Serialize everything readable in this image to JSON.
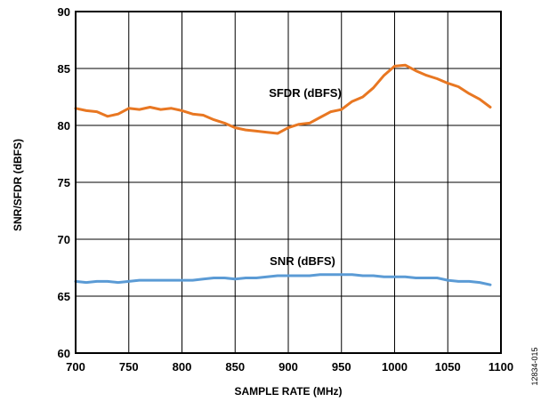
{
  "chart_data": {
    "type": "line",
    "xlabel": "SAMPLE RATE (MHz)",
    "ylabel": "SNR/SFDR (dBFS)",
    "xlim": [
      700,
      1100
    ],
    "ylim": [
      60,
      90
    ],
    "x_ticks": [
      700,
      750,
      800,
      850,
      900,
      950,
      1000,
      1050,
      1100
    ],
    "y_ticks": [
      60,
      65,
      70,
      75,
      80,
      85,
      90
    ],
    "grid": true,
    "figure_id": "12834-015",
    "series": [
      {
        "name": "SFDR (dBFS)",
        "color": "#e87722",
        "x": [
          700,
          710,
          720,
          730,
          740,
          750,
          760,
          770,
          780,
          790,
          800,
          810,
          820,
          830,
          840,
          850,
          860,
          870,
          880,
          890,
          900,
          910,
          920,
          930,
          940,
          950,
          960,
          970,
          980,
          990,
          1000,
          1010,
          1020,
          1030,
          1040,
          1050,
          1060,
          1070,
          1080,
          1090
        ],
        "values": [
          81.5,
          81.3,
          81.2,
          80.8,
          81.0,
          81.5,
          81.4,
          81.6,
          81.4,
          81.5,
          81.3,
          81.0,
          80.9,
          80.5,
          80.2,
          79.8,
          79.6,
          79.5,
          79.4,
          79.3,
          79.8,
          80.1,
          80.2,
          80.7,
          81.2,
          81.4,
          82.1,
          82.5,
          83.3,
          84.4,
          85.2,
          85.3,
          84.8,
          84.4,
          84.1,
          83.7,
          83.4,
          82.8,
          82.3,
          81.6
        ]
      },
      {
        "name": "SNR (dBFS)",
        "color": "#5b9bd5",
        "x": [
          700,
          710,
          720,
          730,
          740,
          750,
          760,
          770,
          780,
          790,
          800,
          810,
          820,
          830,
          840,
          850,
          860,
          870,
          880,
          890,
          900,
          910,
          920,
          930,
          940,
          950,
          960,
          970,
          980,
          990,
          1000,
          1010,
          1020,
          1030,
          1040,
          1050,
          1060,
          1070,
          1080,
          1090
        ],
        "values": [
          66.3,
          66.2,
          66.3,
          66.3,
          66.2,
          66.3,
          66.4,
          66.4,
          66.4,
          66.4,
          66.4,
          66.4,
          66.5,
          66.6,
          66.6,
          66.5,
          66.6,
          66.6,
          66.7,
          66.8,
          66.8,
          66.8,
          66.8,
          66.9,
          66.9,
          66.9,
          66.9,
          66.8,
          66.8,
          66.7,
          66.7,
          66.7,
          66.6,
          66.6,
          66.6,
          66.4,
          66.3,
          66.3,
          66.2,
          66.0
        ]
      }
    ]
  }
}
